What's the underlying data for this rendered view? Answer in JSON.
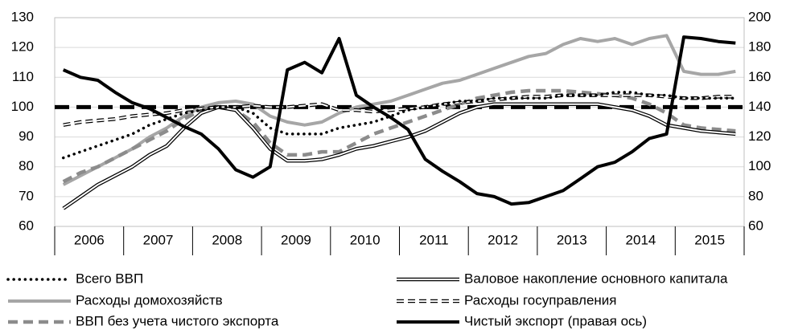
{
  "chart_data": {
    "type": "line",
    "x": [
      2006.125,
      2006.375,
      2006.625,
      2006.875,
      2007.125,
      2007.375,
      2007.625,
      2007.875,
      2008.125,
      2008.375,
      2008.625,
      2008.875,
      2009.125,
      2009.375,
      2009.625,
      2009.875,
      2010.125,
      2010.375,
      2010.625,
      2010.875,
      2011.125,
      2011.375,
      2011.625,
      2011.875,
      2012.125,
      2012.375,
      2012.625,
      2012.875,
      2013.125,
      2013.375,
      2013.625,
      2013.875,
      2014.125,
      2014.375,
      2014.625,
      2014.875,
      2015.125,
      2015.375,
      2015.625,
      2015.875
    ],
    "xlim": [
      2006,
      2016
    ],
    "xticks": [
      {
        "value": 2006.5,
        "label": "2006"
      },
      {
        "value": 2007.5,
        "label": "2007"
      },
      {
        "value": 2008.5,
        "label": "2008"
      },
      {
        "value": 2009.5,
        "label": "2009"
      },
      {
        "value": 2010.5,
        "label": "2010"
      },
      {
        "value": 2011.5,
        "label": "2011"
      },
      {
        "value": 2012.5,
        "label": "2012"
      },
      {
        "value": 2013.5,
        "label": "2013"
      },
      {
        "value": 2014.5,
        "label": "2014"
      },
      {
        "value": 2015.5,
        "label": "2015"
      }
    ],
    "ylim": [
      60,
      130
    ],
    "yticks": [
      60,
      70,
      80,
      90,
      100,
      110,
      120,
      130
    ],
    "y2lim": [
      60,
      200
    ],
    "y2ticks": [
      60,
      80,
      100,
      120,
      140,
      160,
      180,
      200
    ],
    "grid": true,
    "reference_line": 100,
    "legend": "bottom",
    "series": [
      {
        "name": "Всего ВВП",
        "color": "#000000",
        "line_style": "dotted",
        "values": [
          83,
          85,
          87,
          89,
          91,
          94,
          96,
          98,
          99,
          100,
          100,
          98,
          93,
          91,
          91,
          91,
          93,
          94,
          95,
          97,
          99,
          100,
          101,
          102,
          102,
          103,
          103,
          103,
          103,
          104,
          104,
          104,
          105,
          105,
          104,
          104,
          103,
          103,
          103,
          103
        ]
      },
      {
        "name": "Валовое накопление основного капитала",
        "color": "#000000",
        "line_style": "double",
        "values": [
          66,
          70,
          74,
          77,
          80,
          84,
          87,
          93,
          98,
          100,
          99,
          93,
          86,
          82,
          82,
          82.5,
          84,
          86,
          87,
          88.5,
          90,
          92,
          95,
          98,
          100,
          101,
          101,
          101,
          101,
          101,
          101,
          101,
          100,
          99,
          97,
          94,
          93,
          92,
          91.5,
          91
        ]
      },
      {
        "name": "Расходы домохозяйств",
        "color": "#a6a6a6",
        "line_style": "solid",
        "values": [
          74,
          77,
          80,
          83,
          86,
          90,
          93,
          97,
          100,
          101.5,
          102,
          101,
          97,
          95,
          94,
          95,
          98,
          100,
          101,
          102,
          104,
          106,
          108,
          109,
          111,
          113,
          115,
          117,
          118,
          121,
          123,
          122,
          123,
          121,
          123,
          124,
          112,
          111,
          111,
          112
        ]
      },
      {
        "name": "Расходы госуправления",
        "color": "#000000",
        "line_style": "dashed-double",
        "values": [
          94,
          95,
          95.5,
          96,
          97,
          97.5,
          98,
          99,
          99.5,
          100,
          100,
          100.5,
          100,
          100,
          100.5,
          101,
          99,
          99,
          98.5,
          99,
          99.5,
          100,
          101,
          101.5,
          102,
          102.5,
          103,
          103.5,
          103.5,
          104,
          104,
          104,
          104,
          104,
          104,
          103.5,
          103,
          103,
          103.5,
          103.5
        ]
      },
      {
        "name": "ВВП без учета чистого экспорта",
        "color": "#8c8c8c",
        "line_style": "dashed",
        "values": [
          75,
          78,
          80,
          83,
          86,
          89,
          92,
          96,
          99,
          100,
          99,
          95,
          88,
          84,
          84,
          85,
          85,
          88,
          91,
          93,
          95,
          97,
          99,
          101,
          103,
          104,
          105,
          105.5,
          105.5,
          105.5,
          105,
          104.5,
          104,
          103,
          101,
          98,
          94,
          93,
          92.5,
          92
        ]
      },
      {
        "name": "Чистый экспорт (правая ось)",
        "color": "#000000",
        "line_style": "solid",
        "axis": "y2",
        "values": [
          165,
          160,
          158,
          150,
          143,
          139,
          133,
          127,
          122,
          112,
          98,
          93,
          100,
          165,
          170,
          163,
          186,
          148,
          140,
          133,
          125,
          105,
          97,
          90,
          82,
          80,
          75,
          76,
          80,
          84,
          92,
          100,
          103,
          110,
          119,
          122,
          187,
          186,
          184,
          183
        ]
      }
    ]
  }
}
